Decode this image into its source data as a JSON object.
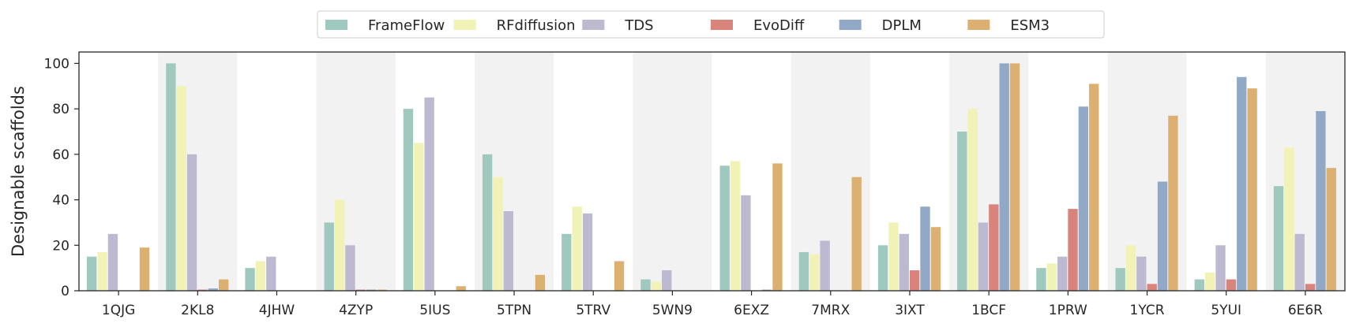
{
  "chart_data": {
    "type": "bar",
    "title": "",
    "xlabel": "",
    "ylabel": "Designable scaffolds",
    "ylim": [
      0,
      105
    ],
    "yticks": [
      0,
      20,
      40,
      60,
      80,
      100
    ],
    "grid": false,
    "legend_placement": "top-center",
    "categories": [
      "1QJG",
      "2KL8",
      "4JHW",
      "4ZYP",
      "5IUS",
      "5TPN",
      "5TRV",
      "5WN9",
      "6EXZ",
      "7MRX",
      "3IXT",
      "1BCF",
      "1PRW",
      "1YCR",
      "5YUI",
      "6E6R"
    ],
    "series": [
      {
        "name": "FrameFlow",
        "color": "#9fc8be",
        "values": [
          15,
          100,
          10,
          30,
          80,
          60,
          25,
          5,
          55,
          17,
          20,
          70,
          10,
          10,
          5,
          46
        ]
      },
      {
        "name": "RFdiffusion",
        "color": "#f1f2b6",
        "values": [
          17,
          90,
          13,
          40,
          65,
          50,
          37,
          4,
          57,
          16,
          30,
          80,
          12,
          20,
          8,
          63
        ]
      },
      {
        "name": "TDS",
        "color": "#bdb9d1",
        "values": [
          25,
          60,
          15,
          20,
          85,
          35,
          34,
          9,
          42,
          22,
          25,
          30,
          15,
          15,
          20,
          25
        ]
      },
      {
        "name": "EvoDiff",
        "color": "#d8837c",
        "values": [
          0,
          0.5,
          0,
          0.5,
          0,
          0,
          0,
          0,
          0,
          0,
          9,
          38,
          36,
          3,
          5,
          3
        ]
      },
      {
        "name": "DPLM",
        "color": "#91a8c6",
        "values": [
          0,
          1,
          0,
          0.5,
          0,
          0,
          0,
          0,
          0.5,
          0,
          37,
          100,
          81,
          48,
          94,
          79
        ]
      },
      {
        "name": "ESM3",
        "color": "#dcb071",
        "values": [
          19,
          5,
          0,
          0.5,
          2,
          7,
          13,
          0,
          56,
          50,
          28,
          100,
          91,
          77,
          89,
          54
        ]
      }
    ]
  }
}
